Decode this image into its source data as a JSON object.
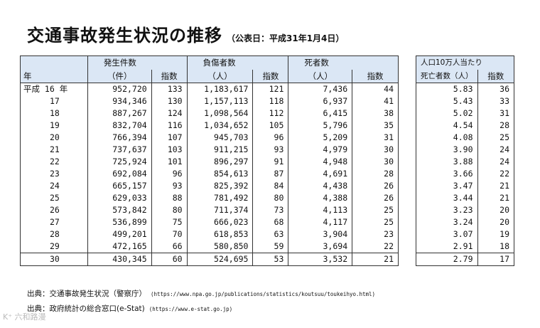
{
  "title": "交通事故発生状況の推移",
  "subtitle": "（公表日：平成31年1月4日）",
  "headers": {
    "year": "年",
    "occurrences": "発生件数",
    "occurrences_unit": "（件）",
    "injured": "負傷者数",
    "injured_unit": "（人）",
    "deaths": "死者数",
    "deaths_unit": "（人）",
    "index": "指数",
    "per100k": "人口10万人当たり",
    "per100k_deaths": "死亡者数（人）"
  },
  "rows": [
    [
      "平成 16 年",
      "952,720",
      "133",
      "1,183,617",
      "121",
      "7,436",
      "44",
      "5.83",
      "36"
    ],
    [
      "17",
      "934,346",
      "130",
      "1,157,113",
      "118",
      "6,937",
      "41",
      "5.43",
      "33"
    ],
    [
      "18",
      "887,267",
      "124",
      "1,098,564",
      "112",
      "6,415",
      "38",
      "5.02",
      "31"
    ],
    [
      "19",
      "832,704",
      "116",
      "1,034,652",
      "105",
      "5,796",
      "35",
      "4.54",
      "28"
    ],
    [
      "20",
      "766,394",
      "107",
      "945,703",
      "96",
      "5,209",
      "31",
      "4.08",
      "25"
    ],
    [
      "21",
      "737,637",
      "103",
      "911,215",
      "93",
      "4,979",
      "30",
      "3.90",
      "24"
    ],
    [
      "22",
      "725,924",
      "101",
      "896,297",
      "91",
      "4,948",
      "30",
      "3.88",
      "24"
    ],
    [
      "23",
      "692,084",
      "96",
      "854,613",
      "87",
      "4,691",
      "28",
      "3.66",
      "22"
    ],
    [
      "24",
      "665,157",
      "93",
      "825,392",
      "84",
      "4,438",
      "26",
      "3.47",
      "21"
    ],
    [
      "25",
      "629,033",
      "88",
      "781,492",
      "80",
      "4,388",
      "26",
      "3.44",
      "21"
    ],
    [
      "26",
      "573,842",
      "80",
      "711,374",
      "73",
      "4,113",
      "25",
      "3.23",
      "20"
    ],
    [
      "27",
      "536,899",
      "75",
      "666,023",
      "68",
      "4,117",
      "25",
      "3.24",
      "20"
    ],
    [
      "28",
      "499,201",
      "70",
      "618,853",
      "63",
      "3,904",
      "23",
      "3.07",
      "19"
    ],
    [
      "29",
      "472,165",
      "66",
      "580,850",
      "59",
      "3,694",
      "22",
      "2.91",
      "18"
    ],
    [
      "30",
      "430,345",
      "60",
      "524,695",
      "53",
      "3,532",
      "21",
      "2.79",
      "17"
    ]
  ],
  "sources": [
    {
      "label": "出典：交通事故発生状況（警察庁）",
      "url": "(https://www.npa.go.jp/publications/statistics/koutsuu/toukeihyo.html)"
    },
    {
      "label": "出典：政府統計の総合窓口(e-Stat)",
      "url": "(https://www.e-stat.go.jp)"
    }
  ],
  "watermark": "K⁺ 六和路漫"
}
